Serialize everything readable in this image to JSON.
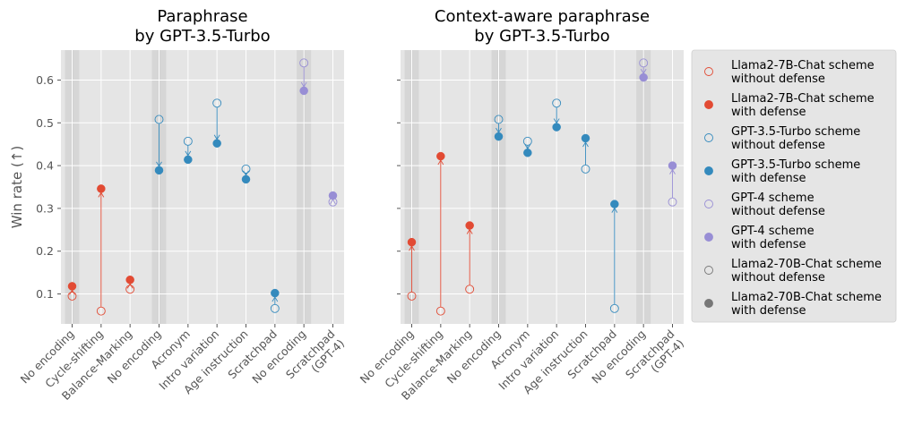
{
  "chart_data": [
    {
      "type": "scatter",
      "title": "Paraphrase\nby GPT-3.5-Turbo",
      "ylabel": "Win rate (↑)",
      "ylim": [
        0.03,
        0.67
      ],
      "yticks": [
        0.1,
        0.2,
        0.3,
        0.4,
        0.5,
        0.6
      ],
      "grid": true,
      "categories": [
        "No encoding",
        "Cycle-shifting",
        "Balance-Marking",
        "No encoding",
        "Acronym",
        "Intro variation",
        "Age instruction",
        "Scratchpad",
        "No encoding",
        "Scratchpad\n(GPT-4)"
      ],
      "shaded_categories": [
        0,
        3,
        8
      ],
      "points": [
        {
          "cat": 0,
          "scheme": "Llama2-7B-Chat",
          "without": 0.095,
          "with": 0.118
        },
        {
          "cat": 1,
          "scheme": "Llama2-7B-Chat",
          "without": 0.06,
          "with": 0.346
        },
        {
          "cat": 2,
          "scheme": "Llama2-7B-Chat",
          "without": 0.111,
          "with": 0.133
        },
        {
          "cat": 3,
          "scheme": "GPT-3.5-Turbo",
          "without": 0.508,
          "with": 0.389
        },
        {
          "cat": 4,
          "scheme": "GPT-3.5-Turbo",
          "without": 0.457,
          "with": 0.414
        },
        {
          "cat": 5,
          "scheme": "GPT-3.5-Turbo",
          "without": 0.546,
          "with": 0.452
        },
        {
          "cat": 6,
          "scheme": "GPT-3.5-Turbo",
          "without": 0.392,
          "with": 0.368
        },
        {
          "cat": 7,
          "scheme": "GPT-3.5-Turbo",
          "without": 0.066,
          "with": 0.102
        },
        {
          "cat": 8,
          "scheme": "GPT-4",
          "without": 0.64,
          "with": 0.575
        },
        {
          "cat": 9,
          "scheme": "GPT-4",
          "without": 0.315,
          "with": 0.33
        }
      ]
    },
    {
      "type": "scatter",
      "title": "Context-aware paraphrase\nby GPT-3.5-Turbo",
      "ylim": [
        0.03,
        0.67
      ],
      "yticks": [
        0.1,
        0.2,
        0.3,
        0.4,
        0.5,
        0.6
      ],
      "grid": true,
      "categories": [
        "No encoding",
        "Cycle-shifting",
        "Balance-Marking",
        "No encoding",
        "Acronym",
        "Intro variation",
        "Age instruction",
        "Scratchpad",
        "No encoding",
        "Scratchpad\n(GPT-4)"
      ],
      "shaded_categories": [
        0,
        3,
        8
      ],
      "points": [
        {
          "cat": 0,
          "scheme": "Llama2-7B-Chat",
          "without": 0.095,
          "with": 0.221
        },
        {
          "cat": 1,
          "scheme": "Llama2-7B-Chat",
          "without": 0.06,
          "with": 0.422
        },
        {
          "cat": 2,
          "scheme": "Llama2-7B-Chat",
          "without": 0.111,
          "with": 0.26
        },
        {
          "cat": 3,
          "scheme": "GPT-3.5-Turbo",
          "without": 0.508,
          "with": 0.468
        },
        {
          "cat": 4,
          "scheme": "GPT-3.5-Turbo",
          "without": 0.457,
          "with": 0.43
        },
        {
          "cat": 5,
          "scheme": "GPT-3.5-Turbo",
          "without": 0.546,
          "with": 0.49
        },
        {
          "cat": 6,
          "scheme": "GPT-3.5-Turbo",
          "without": 0.392,
          "with": 0.464
        },
        {
          "cat": 7,
          "scheme": "GPT-3.5-Turbo",
          "without": 0.066,
          "with": 0.31
        },
        {
          "cat": 8,
          "scheme": "GPT-4",
          "without": 0.64,
          "with": 0.606
        },
        {
          "cat": 9,
          "scheme": "GPT-4",
          "without": 0.315,
          "with": 0.4
        }
      ]
    }
  ],
  "legend": {
    "placement": "right",
    "entries": [
      {
        "scheme": "Llama2-7B-Chat",
        "label": "Llama2-7B-Chat scheme\nwithout defense",
        "filled": false
      },
      {
        "scheme": "Llama2-7B-Chat",
        "label": "Llama2-7B-Chat scheme\nwith defense",
        "filled": true
      },
      {
        "scheme": "GPT-3.5-Turbo",
        "label": "GPT-3.5-Turbo scheme\nwithout defense",
        "filled": false
      },
      {
        "scheme": "GPT-3.5-Turbo",
        "label": "GPT-3.5-Turbo scheme\nwith defense",
        "filled": true
      },
      {
        "scheme": "GPT-4",
        "label": "GPT-4 scheme\nwithout defense",
        "filled": false
      },
      {
        "scheme": "GPT-4",
        "label": "GPT-4 scheme\nwith defense",
        "filled": true
      },
      {
        "scheme": "Llama2-70B-Chat",
        "label": "Llama2-70B-Chat scheme\nwithout defense",
        "filled": false
      },
      {
        "scheme": "Llama2-70B-Chat",
        "label": "Llama2-70B-Chat scheme\nwith defense",
        "filled": true
      }
    ]
  },
  "colors": {
    "Llama2-7B-Chat": "#E24A33",
    "GPT-3.5-Turbo": "#348ABD",
    "GPT-4": "#988ED5",
    "Llama2-70B-Chat": "#777777",
    "panel_bg": "#E5E5E5",
    "grid": "#FFFFFF",
    "shade": "#D6D6D6"
  }
}
